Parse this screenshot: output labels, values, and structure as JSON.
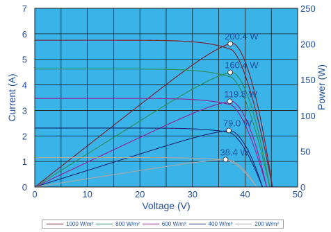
{
  "chart_data": {
    "type": "line",
    "xlabel": "Voltage (V)",
    "ylabel": "Current (A)",
    "y2label": "Power (W)",
    "xlim": [
      0,
      50
    ],
    "ylim": [
      0,
      7
    ],
    "y2lim": [
      0,
      250
    ],
    "x_ticks": [
      "0",
      "10",
      "20",
      "30",
      "40",
      "50"
    ],
    "y_ticks": [
      "0",
      "1",
      "2",
      "3",
      "4",
      "5",
      "6",
      "7"
    ],
    "y2_ticks": [
      "0",
      "50",
      "100",
      "150",
      "200",
      "250"
    ],
    "grid": true,
    "legend_position": "bottom",
    "background_color": "#3ab4e8",
    "series": [
      {
        "name": "1000 W/m²",
        "color": "#7a2535",
        "isc": 5.75,
        "voc": 45.2,
        "vmp": 37.2,
        "imp": 5.4,
        "pmax": 200.4,
        "pmax_label": "200.4 W"
      },
      {
        "name": "800 W/m²",
        "color": "#2f8f5a",
        "isc": 4.62,
        "voc": 44.7,
        "vmp": 37.2,
        "imp": 4.31,
        "pmax": 160.4,
        "pmax_label": "160.4 W"
      },
      {
        "name": "600 W/m²",
        "color": "#8e2a9a",
        "isc": 3.47,
        "voc": 44.1,
        "vmp": 37.1,
        "imp": 3.23,
        "pmax": 119.8,
        "pmax_label": "119.8 W"
      },
      {
        "name": "400 W/m²",
        "color": "#1c2f78",
        "isc": 2.31,
        "voc": 43.3,
        "vmp": 36.9,
        "imp": 2.14,
        "pmax": 79.0,
        "pmax_label": "79.0 W"
      },
      {
        "name": "200 W/m²",
        "color": "#a6a6a6",
        "isc": 1.15,
        "voc": 42.2,
        "vmp": 36.3,
        "imp": 1.06,
        "pmax": 38.4,
        "pmax_label": "38.4 W"
      }
    ]
  }
}
